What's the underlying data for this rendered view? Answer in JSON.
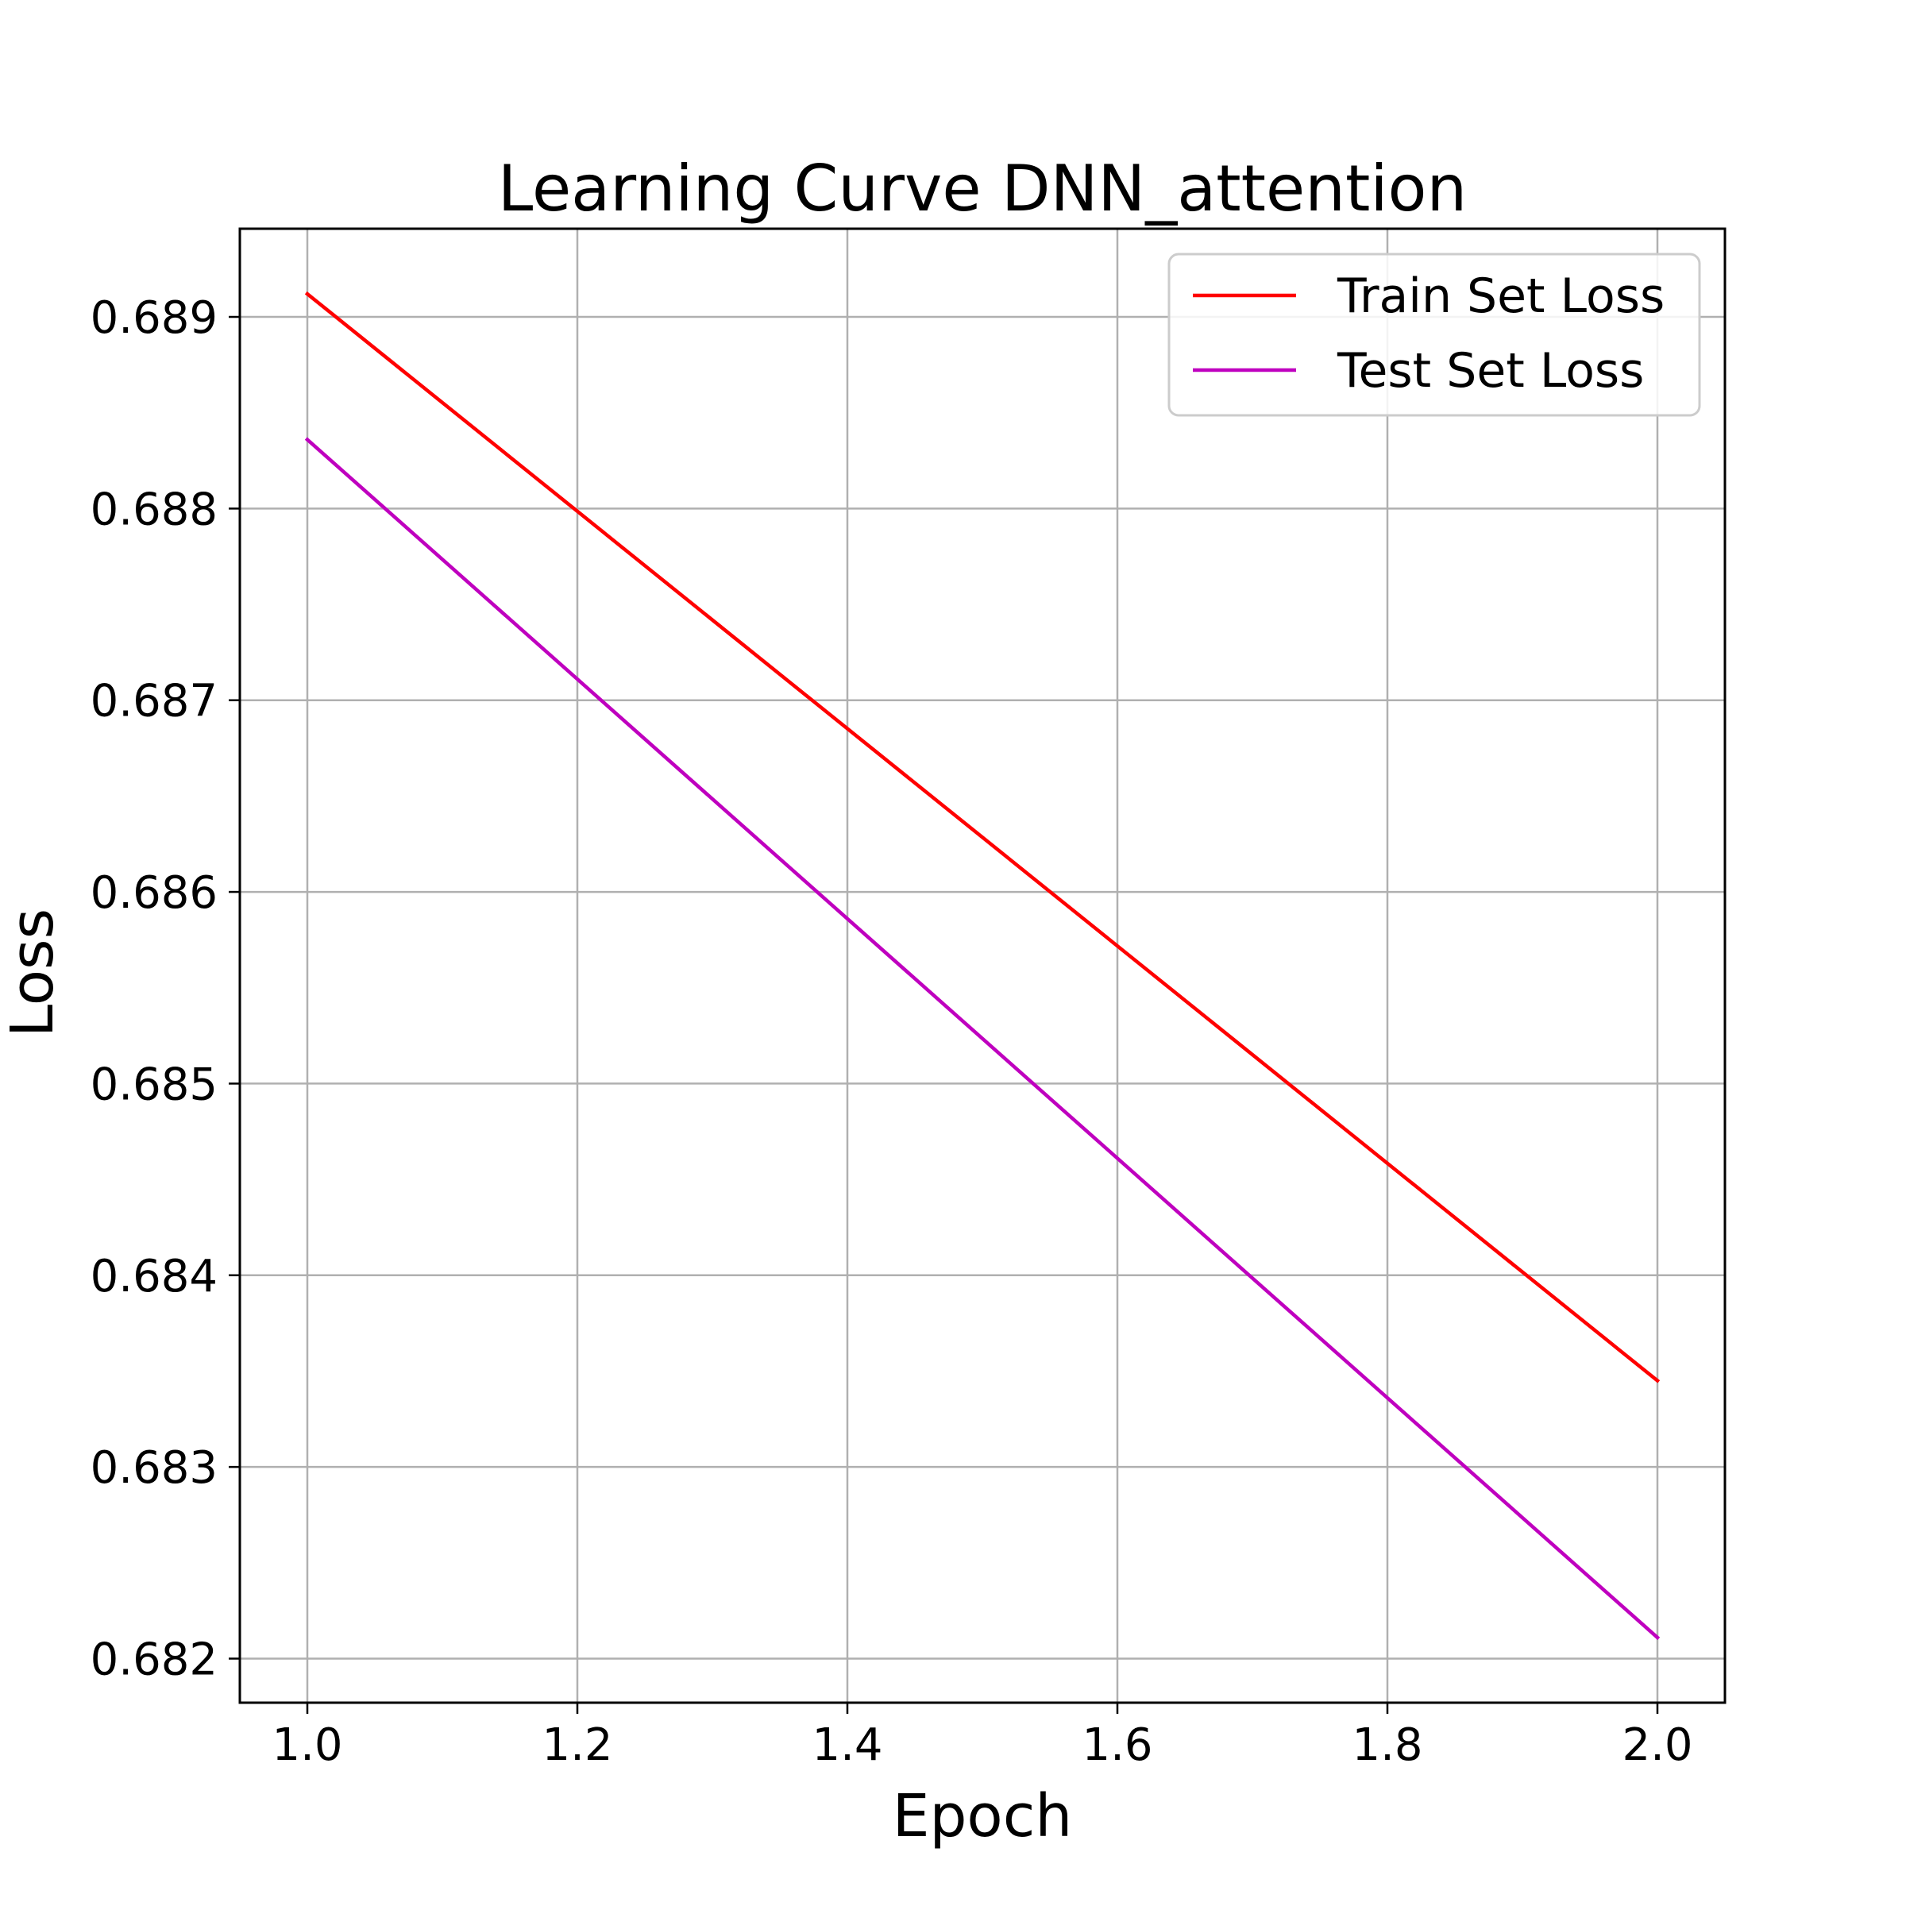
{
  "chart_data": {
    "type": "line",
    "title": "Learning Curve DNN_attention",
    "xlabel": "Epoch",
    "ylabel": "Loss",
    "xlim": [
      0.95,
      2.05
    ],
    "ylim": [
      0.68177,
      0.68946
    ],
    "x_ticks": [
      1.0,
      1.2,
      1.4,
      1.6,
      1.8,
      2.0
    ],
    "x_tick_labels": [
      "1.0",
      "1.2",
      "1.4",
      "1.6",
      "1.8",
      "2.0"
    ],
    "y_ticks": [
      0.682,
      0.683,
      0.684,
      0.685,
      0.686,
      0.687,
      0.688,
      0.689
    ],
    "y_tick_labels": [
      "0.682",
      "0.683",
      "0.684",
      "0.685",
      "0.686",
      "0.687",
      "0.688",
      "0.689"
    ],
    "grid": true,
    "legend_position": "top-right",
    "series": [
      {
        "name": "Train Set Loss",
        "color": "#ff0000",
        "x": [
          1,
          2
        ],
        "y": [
          0.68912,
          0.68345
        ]
      },
      {
        "name": "Test Set Loss",
        "color": "#bf00bf",
        "x": [
          1,
          2
        ],
        "y": [
          0.68836,
          0.68211
        ]
      }
    ]
  }
}
